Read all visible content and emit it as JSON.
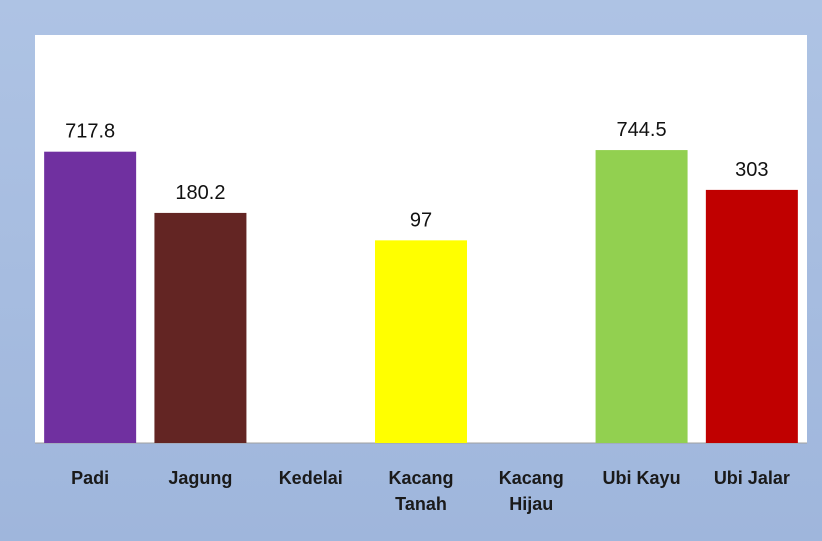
{
  "chart_data": {
    "type": "bar",
    "categories": [
      "Padi",
      "Jagung",
      "Kedelai",
      "Kacang Tanah",
      "Kacang Hijau",
      "Ubi Kayu",
      "Ubi Jalar"
    ],
    "values": [
      717.8,
      180.2,
      null,
      97,
      null,
      744.5,
      303
    ],
    "colors": [
      "#7030a0",
      "#632523",
      null,
      "#ffff00",
      null,
      "#92d050",
      "#c00000"
    ],
    "ylim": [
      1,
      10000
    ],
    "log_scale": true
  }
}
